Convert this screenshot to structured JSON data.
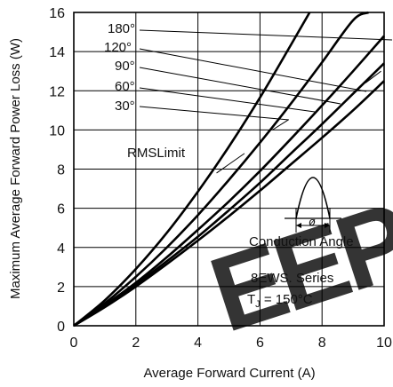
{
  "chart_data": {
    "type": "line",
    "title": "",
    "xlabel": "Average Forward Current (A)",
    "ylabel": "Maximum Average Forward Power Loss (W)",
    "xlim": [
      0,
      10
    ],
    "ylim": [
      0,
      16
    ],
    "x_ticks": [
      "0",
      "2",
      "4",
      "6",
      "8",
      "10"
    ],
    "y_ticks": [
      "0",
      "2",
      "4",
      "6",
      "8",
      "10",
      "12",
      "14",
      "16"
    ],
    "grid": true,
    "series": [
      {
        "name": "180°",
        "x": [
          0,
          1,
          2,
          3,
          4,
          5,
          6,
          7,
          8,
          9,
          10
        ],
        "y": [
          0,
          0.95,
          2.0,
          3.15,
          4.35,
          5.6,
          6.9,
          8.25,
          9.6,
          11.0,
          12.5
        ]
      },
      {
        "name": "120°",
        "x": [
          0,
          1,
          2,
          3,
          4,
          5,
          6,
          7,
          8,
          9,
          10
        ],
        "y": [
          0,
          1.0,
          2.1,
          3.3,
          4.55,
          5.9,
          7.3,
          8.8,
          10.3,
          11.85,
          13.4
        ]
      },
      {
        "name": "90°",
        "x": [
          0,
          1,
          2,
          3,
          4,
          5,
          6,
          7,
          8,
          9,
          10
        ],
        "y": [
          0,
          1.05,
          2.2,
          3.5,
          4.9,
          6.35,
          7.9,
          9.55,
          11.25,
          13.0,
          14.8
        ]
      },
      {
        "name": "60°",
        "x": [
          0,
          1,
          2,
          3,
          4,
          5,
          6,
          7,
          8,
          9,
          9.5
        ],
        "y": [
          0,
          1.15,
          2.5,
          4.0,
          5.65,
          7.45,
          9.35,
          11.35,
          13.45,
          15.6,
          16.0
        ]
      },
      {
        "name": "30°",
        "x": [
          0,
          1,
          2,
          3,
          4,
          5,
          6,
          7,
          7.6
        ],
        "y": [
          0,
          1.3,
          2.9,
          4.75,
          6.85,
          9.15,
          11.65,
          14.35,
          16.0
        ]
      }
    ],
    "rms_limit": {
      "label": "RMSLimit",
      "x": [
        5.0,
        9.0
      ],
      "y": [
        8.4,
        10.8
      ]
    },
    "annotations": {
      "conduction_angle": "Conduction Angle",
      "phi": "ø",
      "series_label": "8EWS. Series",
      "tj_T": "T",
      "tj_sub": "J",
      "tj_rest": " = 150°C"
    },
    "legend_labels": [
      "180°",
      "120°",
      "90°",
      "60°",
      "30°"
    ],
    "legend_placement": "top-left (leader lines to curves)",
    "colors": {
      "curve": "#000000",
      "grid": "#000000",
      "watermark": "#e94b50"
    }
  },
  "watermark": {
    "text": "EEP"
  }
}
